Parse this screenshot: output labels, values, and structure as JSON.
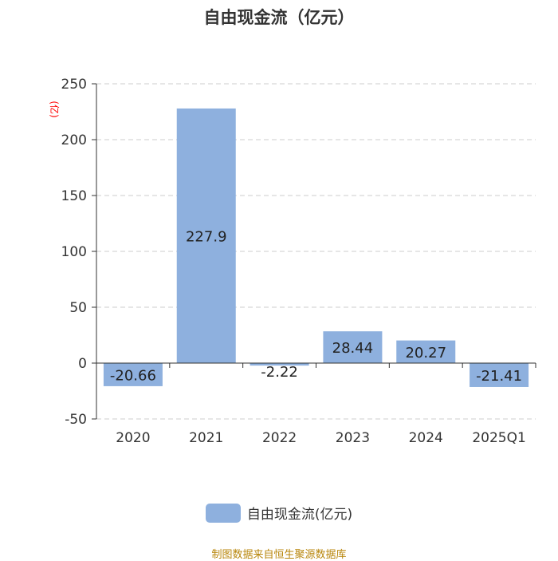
{
  "title": "自由现金流（亿元）",
  "source_note": "制图数据来自恒生聚源数据库",
  "colors": {
    "bar": "#8eb0de",
    "unit_label": "#ff0000",
    "grid": "#cccccc",
    "axis": "#333333",
    "source": "#b8860b"
  },
  "chart_data": {
    "type": "bar",
    "title": "自由现金流（亿元）",
    "ylabel": "(亿)",
    "xlabel": "",
    "categories": [
      "2020",
      "2021",
      "2022",
      "2023",
      "2024",
      "2025Q1"
    ],
    "series": [
      {
        "name": "自由现金流(亿元)",
        "values": [
          -20.66,
          227.9,
          -2.22,
          28.44,
          20.27,
          -21.41
        ]
      }
    ],
    "data_labels": [
      "-20.66",
      "227.9",
      "-2.22",
      "28.44",
      "20.27",
      "-21.41"
    ],
    "ylim": [
      -50,
      250
    ],
    "yticks": [
      -50,
      0,
      50,
      100,
      150,
      200,
      250
    ],
    "grid": true,
    "legend_position": "bottom-center"
  }
}
